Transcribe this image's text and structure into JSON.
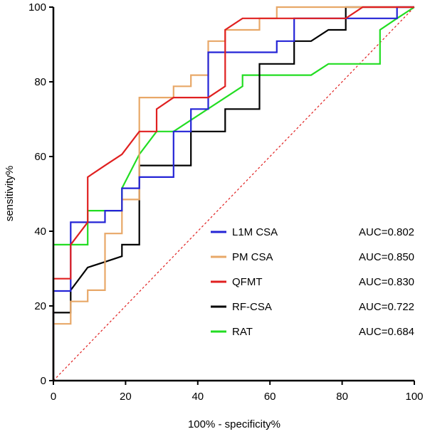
{
  "chart_data": {
    "type": "line",
    "title": "",
    "xlabel": "100% - specificity%",
    "ylabel": "sensitivity%",
    "xlim": [
      0,
      100
    ],
    "ylim": [
      0,
      100
    ],
    "xticks": [
      0,
      20,
      40,
      60,
      80,
      100
    ],
    "yticks": [
      0,
      20,
      40,
      60,
      80,
      100
    ],
    "grid": false,
    "legend_position": "bottom-right",
    "reference_line": {
      "from": [
        0,
        0
      ],
      "to": [
        100,
        100
      ],
      "color": "#e02020",
      "style": "dotted"
    },
    "series": [
      {
        "name": "L1M CSA",
        "auc_label": "AUC=0.802",
        "color": "#2424d6",
        "points": [
          [
            0,
            0
          ],
          [
            0,
            24
          ],
          [
            4.8,
            24
          ],
          [
            4.8,
            42.4
          ],
          [
            9.5,
            42.4
          ],
          [
            14.3,
            42.4
          ],
          [
            14.3,
            45.5
          ],
          [
            19,
            45.5
          ],
          [
            19,
            51.5
          ],
          [
            23.8,
            51.5
          ],
          [
            23.8,
            54.5
          ],
          [
            33.3,
            54.5
          ],
          [
            33.3,
            66.7
          ],
          [
            38.1,
            66.7
          ],
          [
            38.1,
            72.7
          ],
          [
            42.9,
            72.7
          ],
          [
            42.9,
            87.9
          ],
          [
            57,
            87.9
          ],
          [
            61.9,
            87.9
          ],
          [
            61.9,
            90.9
          ],
          [
            66.7,
            90.9
          ],
          [
            66.7,
            97
          ],
          [
            90.5,
            97
          ],
          [
            95.2,
            97
          ],
          [
            95.2,
            100
          ],
          [
            100,
            100
          ]
        ]
      },
      {
        "name": "PM CSA",
        "auc_label": "AUC=0.850",
        "color": "#e8a868",
        "points": [
          [
            0,
            0
          ],
          [
            0,
            15.2
          ],
          [
            4.8,
            15.2
          ],
          [
            4.8,
            21.2
          ],
          [
            9.5,
            21.2
          ],
          [
            9.5,
            24.2
          ],
          [
            14.3,
            24.2
          ],
          [
            14.3,
            39.4
          ],
          [
            19,
            39.4
          ],
          [
            19,
            48.5
          ],
          [
            23.8,
            48.5
          ],
          [
            23.8,
            75.8
          ],
          [
            28.6,
            75.8
          ],
          [
            33.3,
            75.8
          ],
          [
            33.3,
            78.8
          ],
          [
            38.1,
            78.8
          ],
          [
            38.1,
            81.8
          ],
          [
            42.9,
            81.8
          ],
          [
            42.9,
            90.9
          ],
          [
            47.6,
            90.9
          ],
          [
            47.6,
            93.9
          ],
          [
            57.1,
            93.9
          ],
          [
            57.1,
            97
          ],
          [
            61.9,
            97
          ],
          [
            61.9,
            100
          ],
          [
            100,
            100
          ]
        ]
      },
      {
        "name": "QFMT",
        "auc_label": "AUC=0.830",
        "color": "#e02020",
        "points": [
          [
            0,
            0
          ],
          [
            0,
            27.3
          ],
          [
            4.8,
            27.3
          ],
          [
            4.8,
            36.4
          ],
          [
            9.5,
            42.4
          ],
          [
            9.5,
            54.5
          ],
          [
            14.3,
            57.6
          ],
          [
            19,
            60.6
          ],
          [
            23.8,
            66.7
          ],
          [
            28.6,
            66.7
          ],
          [
            28.6,
            72.7
          ],
          [
            33.3,
            75.8
          ],
          [
            42.9,
            75.8
          ],
          [
            47.6,
            78.8
          ],
          [
            47.6,
            93.9
          ],
          [
            52.4,
            97
          ],
          [
            66.7,
            97
          ],
          [
            76.2,
            97
          ],
          [
            81,
            97
          ],
          [
            85.7,
            100
          ],
          [
            100,
            100
          ]
        ]
      },
      {
        "name": "RF-CSA",
        "auc_label": "AUC=0.722",
        "color": "#000000",
        "points": [
          [
            0,
            0
          ],
          [
            0,
            18.2
          ],
          [
            4.8,
            18.2
          ],
          [
            4.8,
            24.2
          ],
          [
            9.5,
            30.3
          ],
          [
            14.3,
            31.8
          ],
          [
            19,
            33.3
          ],
          [
            19,
            36.4
          ],
          [
            23.8,
            36.4
          ],
          [
            23.8,
            57.6
          ],
          [
            28.6,
            57.6
          ],
          [
            38.1,
            57.6
          ],
          [
            38.1,
            66.7
          ],
          [
            47.6,
            66.7
          ],
          [
            47.6,
            72.7
          ],
          [
            57.1,
            72.7
          ],
          [
            57.1,
            84.8
          ],
          [
            61.9,
            84.8
          ],
          [
            61.9,
            84.8
          ],
          [
            66.7,
            84.8
          ],
          [
            66.7,
            90.9
          ],
          [
            71.4,
            90.9
          ],
          [
            76.2,
            93.9
          ],
          [
            81,
            93.9
          ],
          [
            81,
            100
          ],
          [
            100,
            100
          ]
        ]
      },
      {
        "name": "RAT",
        "auc_label": "AUC=0.684",
        "color": "#22dd22",
        "points": [
          [
            0,
            0
          ],
          [
            0,
            36.4
          ],
          [
            4.8,
            36.4
          ],
          [
            9.5,
            36.4
          ],
          [
            9.5,
            45.5
          ],
          [
            14.3,
            45.5
          ],
          [
            19,
            45.5
          ],
          [
            19,
            51.5
          ],
          [
            23.8,
            60.6
          ],
          [
            28.6,
            66.7
          ],
          [
            33.3,
            66.7
          ],
          [
            52.4,
            78.8
          ],
          [
            52.4,
            81.8
          ],
          [
            71.4,
            81.8
          ],
          [
            76.2,
            84.8
          ],
          [
            85.7,
            84.8
          ],
          [
            90.5,
            84.8
          ],
          [
            90.5,
            93.9
          ],
          [
            95.2,
            97
          ],
          [
            100,
            100
          ]
        ]
      }
    ]
  }
}
